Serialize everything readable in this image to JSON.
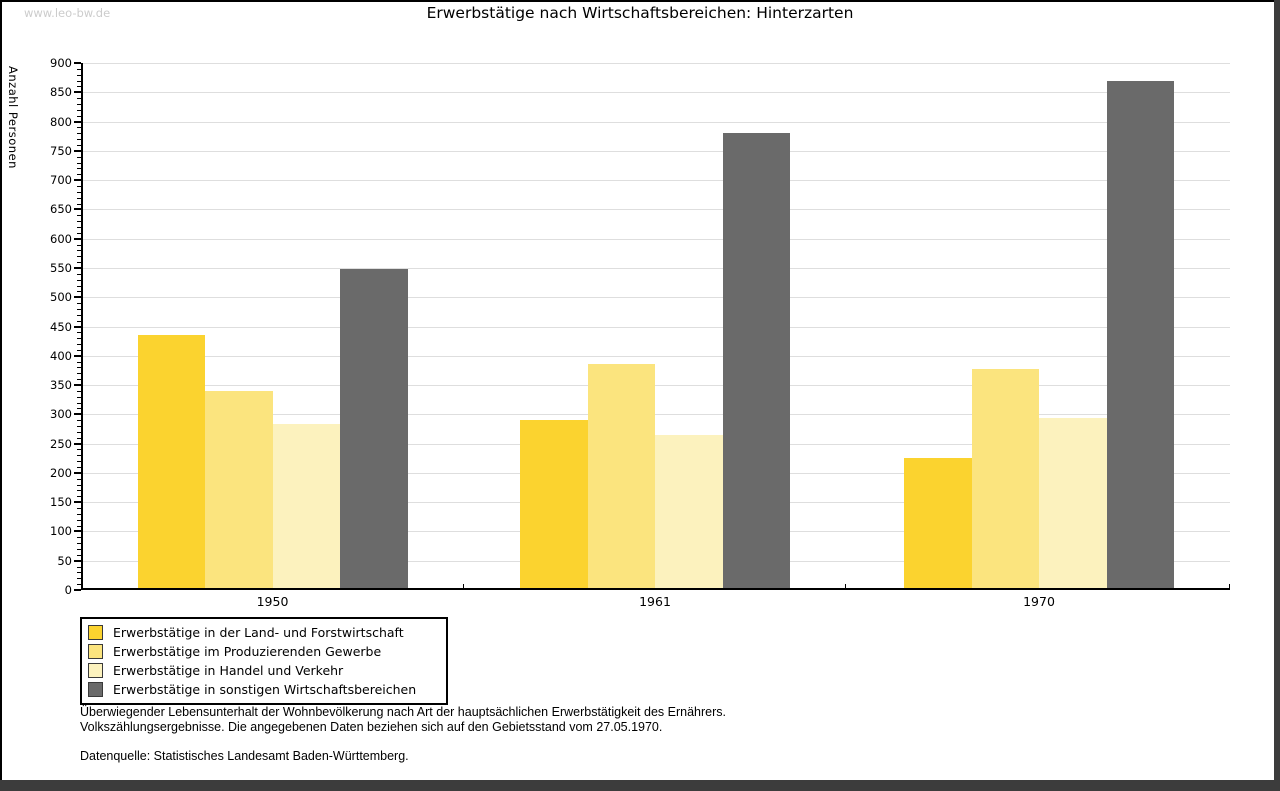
{
  "watermark": "www.leo-bw.de",
  "title": "Erwerbstätige nach Wirtschaftsbereichen: Hinterzarten",
  "chart_data": {
    "type": "bar",
    "title": "Erwerbstätige nach Wirtschaftsbereichen: Hinterzarten",
    "xlabel": "",
    "ylabel": "Anzahl Personen",
    "ylim": [
      0,
      900
    ],
    "ytick_step": 50,
    "y_minor_tick_step": 10,
    "grid": "horizontal",
    "legend_position": "bottom-left",
    "categories": [
      "1950",
      "1961",
      "1970"
    ],
    "series": [
      {
        "name": "Erwerbstätige in der Land- und Forstwirtschaft",
        "color": "#FBD32F",
        "values": [
          435,
          290,
          225
        ]
      },
      {
        "name": "Erwerbstätige im Produzierenden Gewerbe",
        "color": "#FBE47E",
        "values": [
          340,
          386,
          378
        ]
      },
      {
        "name": "Erwerbstätige in Handel und Verkehr",
        "color": "#FCF2BE",
        "values": [
          284,
          265,
          294
        ]
      },
      {
        "name": "Erwerbstätige in sonstigen Wirtschaftsbereichen",
        "color": "#6A6A6A",
        "values": [
          548,
          780,
          870
        ]
      }
    ]
  },
  "notes": {
    "line1": "Überwiegender Lebensunterhalt der Wohnbevölkerung nach Art der hauptsächlichen Erwerbstätigkeit des Ernährers.",
    "line2": "Volkszählungsergebnisse. Die angegebenen Daten beziehen sich auf den Gebietsstand vom 27.05.1970.",
    "source": "Datenquelle: Statistisches Landesamt Baden-Württemberg."
  }
}
